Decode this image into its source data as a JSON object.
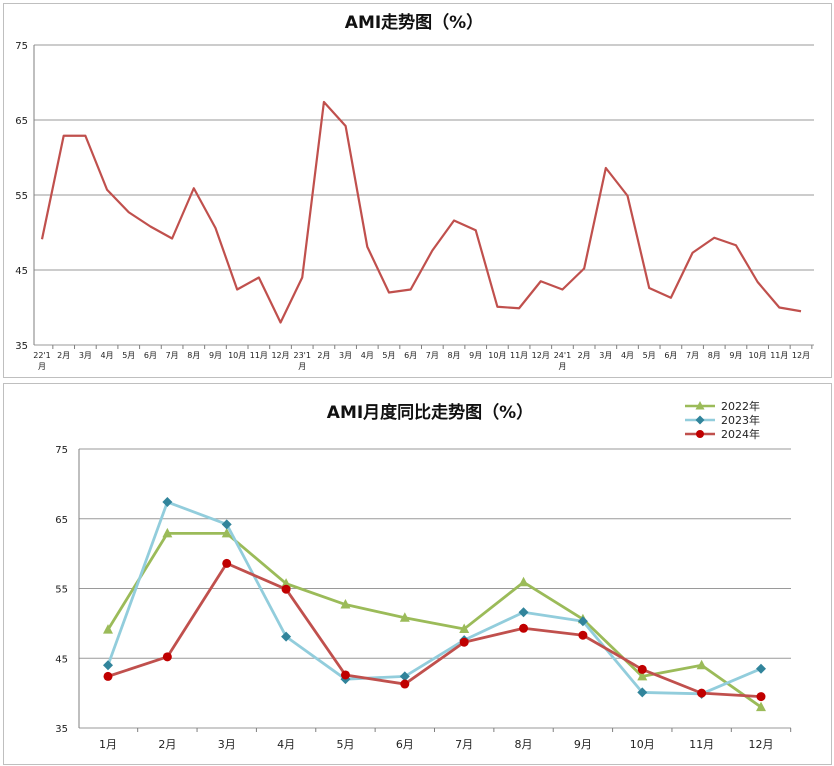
{
  "chart_data": [
    {
      "type": "line",
      "title": "AMI走势图（%）",
      "ylim": [
        35,
        75
      ],
      "yticks": [
        "35",
        "45",
        "55",
        "65",
        "75"
      ],
      "grid": true,
      "categories": [
        "22'1月",
        "2月",
        "3月",
        "4月",
        "5月",
        "6月",
        "7月",
        "8月",
        "9月",
        "10月",
        "11月",
        "12月",
        "23'1月",
        "2月",
        "3月",
        "4月",
        "5月",
        "6月",
        "7月",
        "8月",
        "9月",
        "10月",
        "11月",
        "12月",
        "24'1月",
        "2月",
        "3月",
        "4月",
        "5月",
        "6月",
        "7月",
        "8月",
        "9月",
        "10月",
        "11月",
        "12月"
      ],
      "series": [
        {
          "name": "",
          "color": "#c0504d",
          "values": [
            49.1,
            62.9,
            62.9,
            55.7,
            52.7,
            50.8,
            49.2,
            55.9,
            50.6,
            42.4,
            44.0,
            38.0,
            44.0,
            67.4,
            64.2,
            48.1,
            42.0,
            42.4,
            47.6,
            51.6,
            50.3,
            40.1,
            39.9,
            43.5,
            42.4,
            45.2,
            58.6,
            54.9,
            42.6,
            41.3,
            47.3,
            49.3,
            48.3,
            43.4,
            40.0,
            39.5
          ]
        }
      ]
    },
    {
      "type": "line",
      "title": "AMI月度同比走势图（%）",
      "ylim": [
        35,
        75
      ],
      "yticks": [
        "35",
        "45",
        "55",
        "65",
        "75"
      ],
      "grid": true,
      "legend": "top-right",
      "categories": [
        "1月",
        "2月",
        "3月",
        "4月",
        "5月",
        "6月",
        "7月",
        "8月",
        "9月",
        "10月",
        "11月",
        "12月"
      ],
      "series": [
        {
          "name": "2022年",
          "color": "#9bbb59",
          "marker": "triangle",
          "values": [
            49.1,
            62.9,
            62.9,
            55.7,
            52.7,
            50.8,
            49.2,
            55.9,
            50.6,
            42.4,
            44.0,
            38.0
          ]
        },
        {
          "name": "2023年",
          "color": "#92cddc",
          "marker_color": "#31849b",
          "marker": "diamond",
          "values": [
            44.0,
            67.4,
            64.2,
            48.1,
            42.0,
            42.4,
            47.6,
            51.6,
            50.3,
            40.1,
            39.9,
            43.5
          ]
        },
        {
          "name": "2024年",
          "color": "#c0504d",
          "marker_color": "#c00000",
          "marker": "circle",
          "values": [
            42.4,
            45.2,
            58.6,
            54.9,
            42.6,
            41.3,
            47.3,
            49.3,
            48.3,
            43.4,
            40.0,
            39.5
          ]
        }
      ]
    }
  ]
}
